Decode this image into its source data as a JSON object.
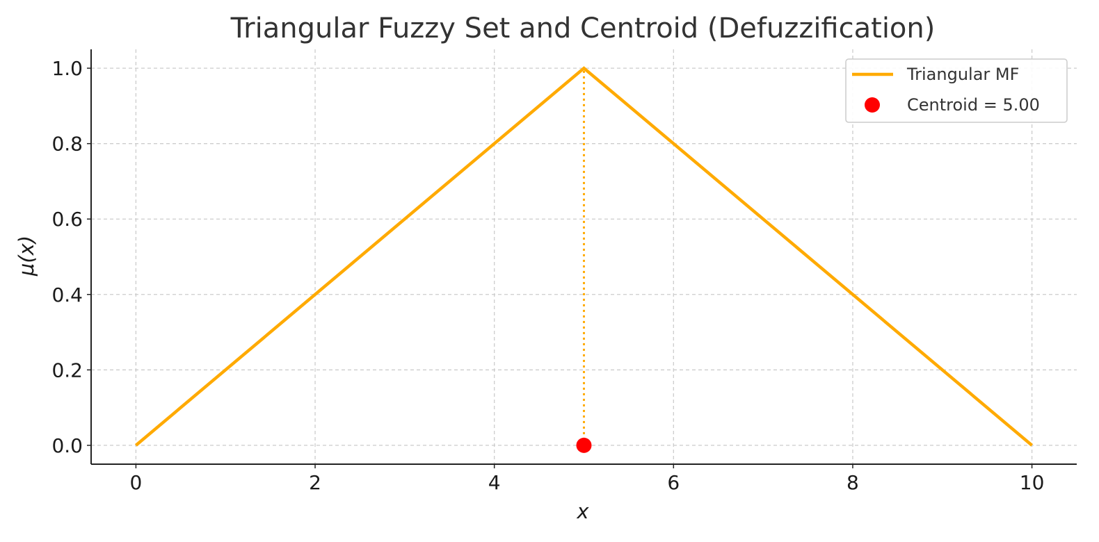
{
  "chart_data": {
    "type": "line",
    "title": "Triangular Fuzzy Set and Centroid (Defuzzification)",
    "xlabel": "x",
    "ylabel": "μ(x)",
    "xlim": [
      -0.5,
      10.5
    ],
    "ylim": [
      -0.05,
      1.05
    ],
    "x_ticks": [
      0,
      2,
      4,
      6,
      8,
      10
    ],
    "x_tick_labels": [
      "0",
      "2",
      "4",
      "6",
      "8",
      "10"
    ],
    "y_ticks": [
      0.0,
      0.2,
      0.4,
      0.6,
      0.8,
      1.0
    ],
    "y_tick_labels": [
      "0.0",
      "0.2",
      "0.4",
      "0.6",
      "0.8",
      "1.0"
    ],
    "grid": true,
    "legend_position": "top-right",
    "series": [
      {
        "name": "Triangular MF",
        "kind": "line",
        "color": "#FFAA00",
        "x": [
          0,
          5,
          10
        ],
        "y": [
          0,
          1,
          0
        ]
      },
      {
        "name": "Centroid = 5.00",
        "kind": "scatter",
        "color": "#FF0000",
        "x": [
          5
        ],
        "y": [
          0
        ]
      }
    ],
    "annotations": [
      {
        "kind": "vertical-dotted-line",
        "x": 5,
        "y_from": 0,
        "y_to": 1,
        "color": "#FFAA00"
      }
    ]
  }
}
